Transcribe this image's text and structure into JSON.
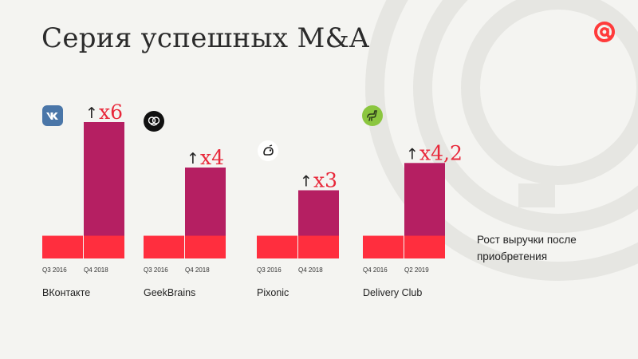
{
  "slide": {
    "title": "Серия успешных M&A",
    "caption": "Рост выручки после приобретения",
    "colors": {
      "before": "#ff2e3e",
      "after_lower": "#ff2e3e",
      "after_upper": "#b51f62",
      "multiplier": "#e8283a",
      "text": "#222222",
      "background": "#f4f4f1"
    },
    "logo_icon": "mail-ru-at-icon"
  },
  "chart_data": {
    "type": "bar",
    "unit": "relative revenue (before = 1)",
    "companies": [
      {
        "name": "ВКонтакте",
        "icon": "vk-logo-icon",
        "x_labels": [
          "Q3 2016",
          "Q4 2018"
        ],
        "values": [
          1,
          6
        ],
        "multiplier": "x6"
      },
      {
        "name": "GeekBrains",
        "icon": "geekbrains-logo-icon",
        "x_labels": [
          "Q3 2016",
          "Q4 2018"
        ],
        "values": [
          1,
          4
        ],
        "multiplier": "x4"
      },
      {
        "name": "Pixonic",
        "icon": "pixonic-logo-icon",
        "x_labels": [
          "Q3 2016",
          "Q4 2018"
        ],
        "values": [
          1,
          3
        ],
        "multiplier": "x3"
      },
      {
        "name": "Delivery Club",
        "icon": "delivery-club-logo-icon",
        "x_labels": [
          "Q4 2016",
          "Q2 2019"
        ],
        "values": [
          1,
          4.2
        ],
        "multiplier": "x4,2"
      }
    ]
  }
}
